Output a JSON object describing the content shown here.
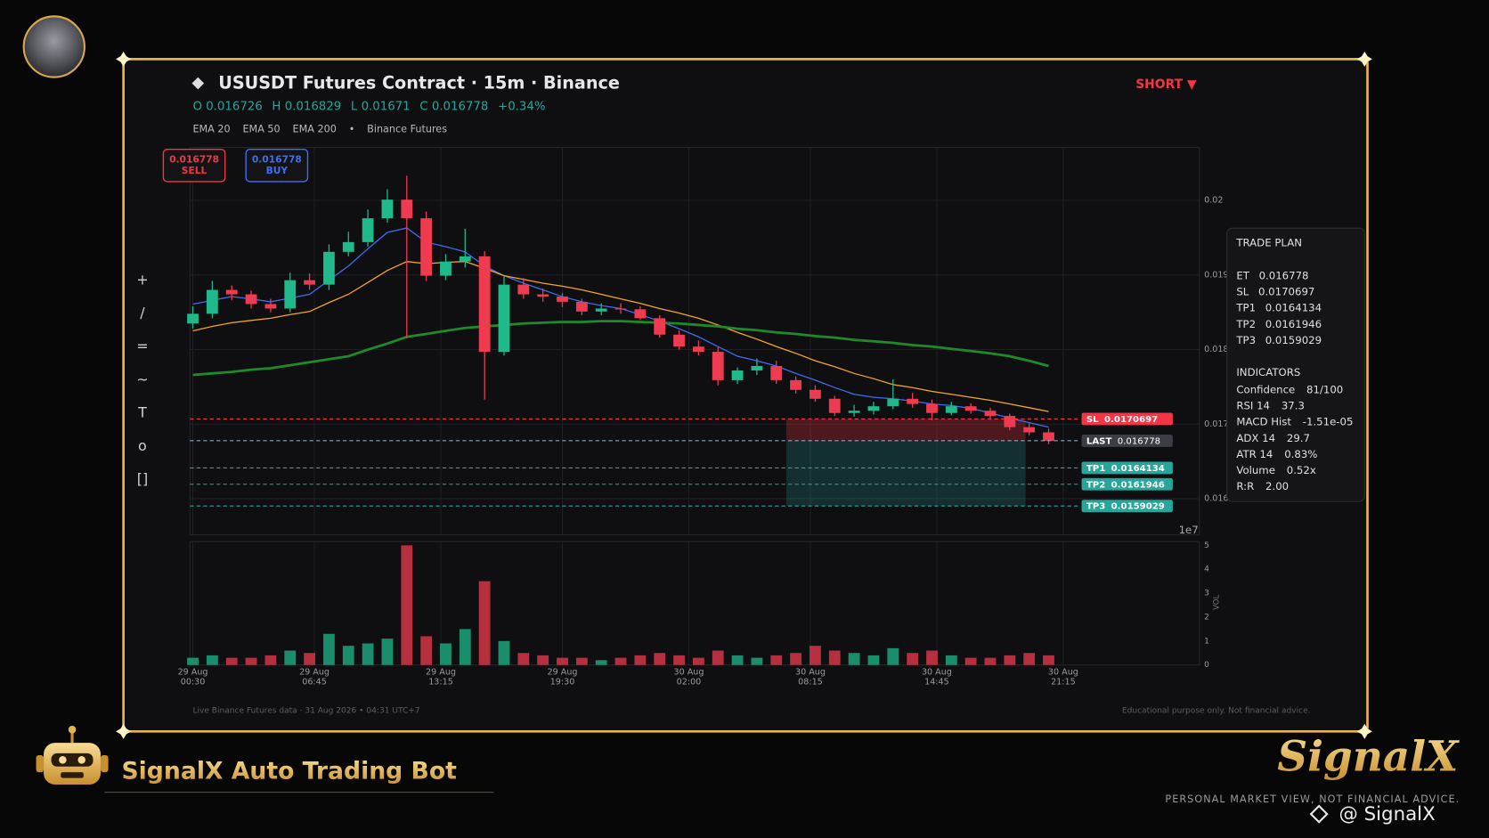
{
  "header": {
    "title": "USUSDT Futures Contract  ·  15m  ·  Binance",
    "signal": "SHORT ▼",
    "ohlc": [
      {
        "label": "O",
        "value": 0.016726
      },
      {
        "label": "H",
        "value": 0.016829
      },
      {
        "label": "L",
        "value": 0.01671
      },
      {
        "label": "C",
        "value": 0.016778
      }
    ],
    "change": "+0.34%",
    "legend_separator": "•",
    "source": "Binance Futures"
  },
  "order_buttons": [
    {
      "price": 0.016778,
      "label": "SELL"
    },
    {
      "price": 0.016778,
      "label": "BUY"
    }
  ],
  "toolbar": [
    "+",
    "/",
    "=",
    "~",
    "T",
    "o",
    "[]"
  ],
  "chart_data": {
    "type": "candlestick",
    "up_color": "#1fb98b",
    "down_color": "#ef3b4f",
    "grid": true,
    "x": [
      "29 Aug 00:30",
      "29 Aug 01:30",
      "29 Aug 02:30",
      "29 Aug 03:30",
      "29 Aug 04:30",
      "29 Aug 05:30",
      "29 Aug 06:30",
      "29 Aug 07:30",
      "29 Aug 08:30",
      "29 Aug 09:30",
      "29 Aug 10:30",
      "29 Aug 11:30",
      "29 Aug 12:30",
      "29 Aug 13:30",
      "29 Aug 14:30",
      "29 Aug 15:30",
      "29 Aug 16:30",
      "29 Aug 17:30",
      "29 Aug 18:30",
      "29 Aug 19:30",
      "29 Aug 20:30",
      "29 Aug 21:30",
      "29 Aug 22:30",
      "29 Aug 23:30",
      "30 Aug 00:30",
      "30 Aug 01:30",
      "30 Aug 02:30",
      "30 Aug 03:30",
      "30 Aug 04:30",
      "30 Aug 05:30",
      "30 Aug 06:30",
      "30 Aug 07:30",
      "30 Aug 08:30",
      "30 Aug 09:30",
      "30 Aug 10:30",
      "30 Aug 11:30",
      "30 Aug 12:30",
      "30 Aug 13:30",
      "30 Aug 14:30",
      "30 Aug 15:30",
      "30 Aug 16:30",
      "30 Aug 17:30",
      "30 Aug 18:30",
      "30 Aug 19:30",
      "30 Aug 20:30"
    ],
    "open": [
      0.01835,
      0.01848,
      0.0188,
      0.01874,
      0.01861,
      0.01855,
      0.01893,
      0.01887,
      0.01931,
      0.01944,
      0.01976,
      0.02001,
      0.01976,
      0.01899,
      0.01918,
      0.01925,
      0.01797,
      0.01887,
      0.01874,
      0.01871,
      0.01864,
      0.01851,
      0.01855,
      0.01854,
      0.01842,
      0.0182,
      0.01804,
      0.01797,
      0.01759,
      0.01772,
      0.01778,
      0.01759,
      0.01746,
      0.01734,
      0.01715,
      0.01718,
      0.01724,
      0.01734,
      0.01727,
      0.01715,
      0.01724,
      0.01718,
      0.01711,
      0.01696,
      0.01689
    ],
    "high": [
      0.01858,
      0.01892,
      0.01886,
      0.01879,
      0.01868,
      0.01903,
      0.01902,
      0.01941,
      0.01958,
      0.01988,
      0.02015,
      0.02033,
      0.01985,
      0.01928,
      0.01962,
      0.01932,
      0.01898,
      0.01896,
      0.01882,
      0.01876,
      0.01868,
      0.01862,
      0.01862,
      0.01858,
      0.01846,
      0.01826,
      0.01812,
      0.01803,
      0.01776,
      0.01788,
      0.01785,
      0.01764,
      0.01752,
      0.01738,
      0.01726,
      0.0173,
      0.0176,
      0.01742,
      0.01733,
      0.0173,
      0.01728,
      0.01722,
      0.01714,
      0.01701,
      0.01694
    ],
    "low": [
      0.01828,
      0.01842,
      0.01866,
      0.01855,
      0.0185,
      0.0185,
      0.0188,
      0.0188,
      0.01925,
      0.01938,
      0.0197,
      0.01815,
      0.01892,
      0.01893,
      0.0191,
      0.01733,
      0.01792,
      0.01868,
      0.01864,
      0.01857,
      0.01846,
      0.01846,
      0.01848,
      0.0184,
      0.01816,
      0.018,
      0.01792,
      0.01752,
      0.01754,
      0.01766,
      0.01754,
      0.01741,
      0.0173,
      0.01711,
      0.0171,
      0.01713,
      0.0172,
      0.01722,
      0.01705,
      0.01712,
      0.01714,
      0.01706,
      0.01692,
      0.01685,
      0.01673
    ],
    "close": [
      0.01848,
      0.0188,
      0.01874,
      0.01861,
      0.01855,
      0.01893,
      0.01887,
      0.01931,
      0.01944,
      0.01976,
      0.02001,
      0.01976,
      0.01899,
      0.01918,
      0.01925,
      0.01797,
      0.01887,
      0.01874,
      0.01871,
      0.01864,
      0.01851,
      0.01855,
      0.01854,
      0.01842,
      0.0182,
      0.01804,
      0.01797,
      0.01759,
      0.01772,
      0.01778,
      0.01759,
      0.01746,
      0.01734,
      0.01715,
      0.01718,
      0.01724,
      0.01734,
      0.01727,
      0.01715,
      0.01724,
      0.01718,
      0.01711,
      0.01696,
      0.01689,
      0.016778
    ],
    "series": [
      {
        "name": "EMA 20",
        "color": "#3f6df0",
        "width": 1.2,
        "values": [
          0.01861,
          0.01866,
          0.01871,
          0.01868,
          0.01864,
          0.01869,
          0.01874,
          0.01893,
          0.01912,
          0.01935,
          0.01957,
          0.01963,
          0.01944,
          0.01938,
          0.01931,
          0.01912,
          0.01899,
          0.01889,
          0.0188,
          0.01871,
          0.01864,
          0.01859,
          0.01855,
          0.01847,
          0.01838,
          0.01828,
          0.01817,
          0.01804,
          0.01791,
          0.01785,
          0.01778,
          0.01768,
          0.01759,
          0.01749,
          0.0174,
          0.01736,
          0.01734,
          0.01731,
          0.01727,
          0.01725,
          0.01721,
          0.01715,
          0.01708,
          0.01702,
          0.01696
        ]
      },
      {
        "name": "EMA 50",
        "color": "#f5a623",
        "width": 1.2,
        "values": [
          0.01825,
          0.01831,
          0.01836,
          0.01839,
          0.01842,
          0.01847,
          0.01851,
          0.01863,
          0.01874,
          0.0189,
          0.01906,
          0.01918,
          0.01915,
          0.01917,
          0.01918,
          0.01909,
          0.01899,
          0.01894,
          0.01889,
          0.01885,
          0.0188,
          0.01874,
          0.01868,
          0.01862,
          0.01855,
          0.01849,
          0.01842,
          0.01833,
          0.01823,
          0.01814,
          0.01804,
          0.01795,
          0.01785,
          0.01777,
          0.01768,
          0.01761,
          0.01753,
          0.01749,
          0.01744,
          0.0174,
          0.01736,
          0.01732,
          0.01727,
          0.01722,
          0.01717
        ]
      },
      {
        "name": "EMA 200",
        "color": "#1e8a2a",
        "width": 2.6,
        "values": [
          0.01766,
          0.01768,
          0.0177,
          0.01773,
          0.01775,
          0.01779,
          0.01783,
          0.01787,
          0.01791,
          0.018,
          0.01808,
          0.01817,
          0.01821,
          0.01825,
          0.01829,
          0.01831,
          0.01833,
          0.01835,
          0.01836,
          0.01837,
          0.01837,
          0.01838,
          0.01838,
          0.01837,
          0.01836,
          0.01835,
          0.01833,
          0.01831,
          0.01828,
          0.01826,
          0.01823,
          0.01821,
          0.01818,
          0.01816,
          0.01813,
          0.01811,
          0.01809,
          0.01806,
          0.01804,
          0.01801,
          0.01798,
          0.01795,
          0.01791,
          0.01785,
          0.01778
        ]
      }
    ],
    "xlim": [
      "29 Aug 00:21",
      "31 Aug 04:15"
    ],
    "xticks": [
      {
        "date": "29 Aug",
        "time": "00:30"
      },
      {
        "date": "29 Aug",
        "time": "06:45"
      },
      {
        "date": "29 Aug",
        "time": "13:15"
      },
      {
        "date": "29 Aug",
        "time": "19:30"
      },
      {
        "date": "30 Aug",
        "time": "02:00"
      },
      {
        "date": "30 Aug",
        "time": "08:15"
      },
      {
        "date": "30 Aug",
        "time": "14:45"
      },
      {
        "date": "30 Aug",
        "time": "21:15"
      }
    ],
    "ylim": [
      0.015516,
      0.02071
    ],
    "yticks": [
      0.016,
      0.017,
      0.018,
      0.019,
      0.02
    ],
    "levels": [
      {
        "name": "LAST",
        "plan_name": "ET",
        "value": 0.016778,
        "color": "#8fbcd4",
        "label_color": "#3b3f45"
      },
      {
        "name": "SL",
        "plan_name": "SL",
        "value": 0.0170697,
        "color": "#f23645",
        "label_color": "#f23645"
      },
      {
        "name": "TP1",
        "plan_name": "TP1",
        "value": 0.0164134,
        "color": "#26a69a",
        "label_color": "#26a69a"
      },
      {
        "name": "TP2",
        "plan_name": "TP2",
        "value": 0.0161946,
        "color": "#26a69a",
        "label_color": "#26a69a"
      },
      {
        "name": "TP3",
        "plan_name": "TP3",
        "value": 0.0159029,
        "color": "#26a69a",
        "label_color": "#26a69a"
      }
    ],
    "volume": {
      "label": "VOL",
      "scale_label": "1e7",
      "ylim": [
        0,
        5.16
      ],
      "yticks": [
        0,
        1,
        2,
        3,
        4,
        5
      ],
      "values": [
        0.3,
        0.4,
        0.3,
        0.3,
        0.4,
        0.6,
        0.5,
        1.3,
        0.8,
        0.9,
        1.1,
        5.0,
        1.2,
        0.9,
        1.5,
        3.5,
        1.0,
        0.5,
        0.4,
        0.3,
        0.3,
        0.2,
        0.3,
        0.4,
        0.5,
        0.4,
        0.3,
        0.6,
        0.4,
        0.3,
        0.4,
        0.5,
        0.8,
        0.6,
        0.5,
        0.4,
        0.7,
        0.5,
        0.6,
        0.4,
        0.3,
        0.3,
        0.4,
        0.5,
        0.4
      ]
    }
  },
  "trade_plan": {
    "title": "TRADE PLAN",
    "indicators_title": "INDICATORS",
    "indicators": [
      {
        "label": "Confidence",
        "value": "81/100"
      },
      {
        "label": "RSI 14",
        "value": "37.3"
      },
      {
        "label": "MACD Hist",
        "value": "-1.51e-05"
      },
      {
        "label": "ADX 14",
        "value": "29.7"
      },
      {
        "label": "ATR 14",
        "value": "0.83%"
      },
      {
        "label": "Volume",
        "value": "0.52x"
      },
      {
        "label": "R:R",
        "value": "2.00"
      }
    ]
  },
  "footer": {
    "left": "Live Binance Futures data  ·  31 Aug 2026 • 04:31 UTC+7",
    "right": "Educational purpose only. Not financial advice."
  },
  "branding": {
    "bot_name": "SignalX Auto Trading Bot",
    "logo": "SignalX",
    "disclaimer": "PERSONAL MARKET VIEW, NOT FINANCIAL ADVICE.",
    "handle": "@ SignalX"
  }
}
